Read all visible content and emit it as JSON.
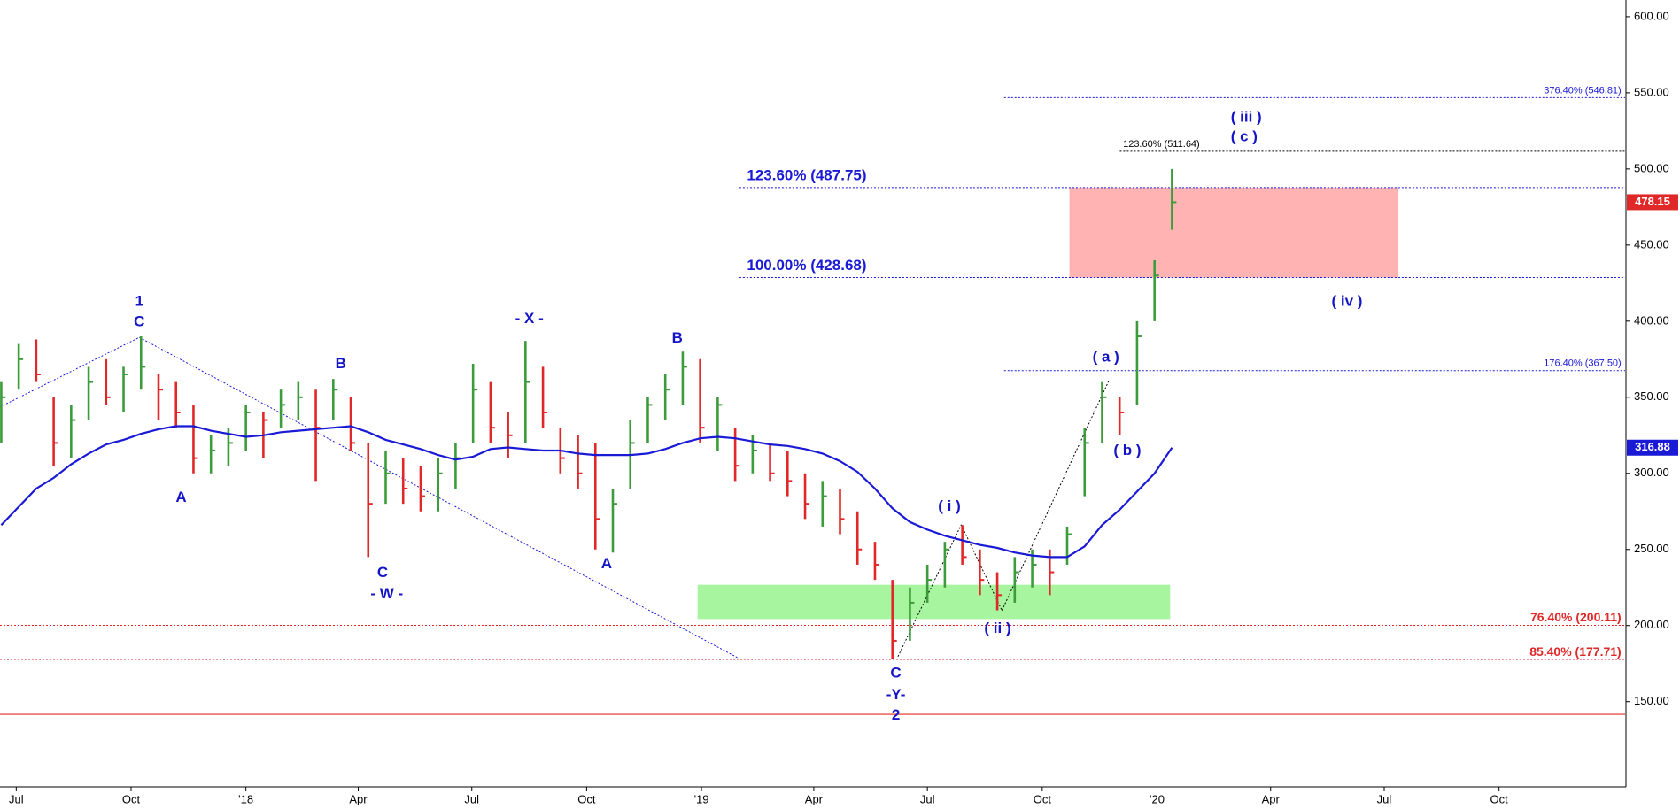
{
  "chart_data": {
    "type": "ohlc",
    "x": [
      "2017-06-19",
      "2017-07-03",
      "2017-07-17",
      "2017-07-31",
      "2017-08-14",
      "2017-08-28",
      "2017-09-11",
      "2017-09-25",
      "2017-10-09",
      "2017-10-23",
      "2017-11-06",
      "2017-11-20",
      "2017-12-04",
      "2017-12-18",
      "2018-01-01",
      "2018-01-15",
      "2018-01-29",
      "2018-02-12",
      "2018-02-26",
      "2018-03-12",
      "2018-03-26",
      "2018-04-09",
      "2018-04-23",
      "2018-05-07",
      "2018-05-21",
      "2018-06-04",
      "2018-06-18",
      "2018-07-02",
      "2018-07-16",
      "2018-07-30",
      "2018-08-13",
      "2018-08-27",
      "2018-09-10",
      "2018-09-24",
      "2018-10-08",
      "2018-10-22",
      "2018-11-05",
      "2018-11-19",
      "2018-12-03",
      "2018-12-17",
      "2018-12-31",
      "2019-01-14",
      "2019-01-28",
      "2019-02-11",
      "2019-02-25",
      "2019-03-11",
      "2019-03-25",
      "2019-04-08",
      "2019-04-22",
      "2019-05-06",
      "2019-05-20",
      "2019-06-03",
      "2019-06-17",
      "2019-07-01",
      "2019-07-15",
      "2019-07-29",
      "2019-08-12",
      "2019-08-26",
      "2019-09-09",
      "2019-09-23",
      "2019-10-07",
      "2019-10-21",
      "2019-11-04",
      "2019-11-18",
      "2019-12-02",
      "2019-12-16",
      "2019-12-30",
      "2020-01-13"
    ],
    "high": [
      360,
      385,
      388,
      350,
      345,
      370,
      375,
      370,
      390,
      365,
      360,
      345,
      325,
      330,
      345,
      340,
      355,
      360,
      355,
      362,
      350,
      320,
      315,
      310,
      305,
      310,
      320,
      372,
      360,
      340,
      387,
      370,
      330,
      325,
      320,
      290,
      335,
      350,
      365,
      380,
      375,
      350,
      330,
      325,
      320,
      315,
      300,
      295,
      290,
      275,
      255,
      230,
      225,
      240,
      255,
      266,
      250,
      235,
      245,
      250,
      250,
      265,
      330,
      360,
      350,
      400,
      440,
      500
    ],
    "low": [
      320,
      355,
      360,
      305,
      310,
      335,
      345,
      340,
      355,
      335,
      330,
      300,
      300,
      305,
      315,
      310,
      330,
      335,
      295,
      335,
      315,
      245,
      280,
      280,
      275,
      275,
      290,
      320,
      320,
      310,
      320,
      330,
      300,
      290,
      250,
      248,
      290,
      320,
      335,
      345,
      320,
      315,
      295,
      300,
      295,
      285,
      270,
      265,
      260,
      240,
      230,
      178,
      190,
      215,
      225,
      240,
      220,
      210,
      215,
      225,
      220,
      240,
      285,
      320,
      325,
      345,
      400,
      460
    ],
    "close": [
      350,
      375,
      365,
      320,
      335,
      360,
      350,
      365,
      370,
      355,
      340,
      310,
      315,
      320,
      340,
      335,
      345,
      350,
      330,
      355,
      320,
      280,
      300,
      290,
      285,
      300,
      310,
      355,
      330,
      325,
      360,
      340,
      310,
      300,
      270,
      280,
      320,
      345,
      355,
      370,
      330,
      345,
      305,
      315,
      300,
      295,
      280,
      285,
      270,
      250,
      240,
      190,
      215,
      230,
      250,
      245,
      230,
      220,
      235,
      240,
      235,
      260,
      320,
      350,
      340,
      390,
      430,
      478.15
    ],
    "up_color": "#3c9c3c",
    "down_color": "#e02828",
    "ma": {
      "color": "#1a1ad6",
      "values": [
        266,
        278,
        290,
        297,
        306,
        313,
        319,
        322,
        326,
        329,
        331,
        331,
        328,
        326,
        324,
        325,
        327,
        328,
        329,
        330,
        331,
        327,
        322,
        319,
        316,
        312,
        309,
        311,
        316,
        317,
        316,
        315,
        315,
        313,
        312,
        312,
        312,
        313,
        316,
        320,
        323,
        324,
        323,
        321,
        319,
        318,
        316,
        313,
        308,
        301,
        290,
        277,
        268,
        263,
        259,
        256,
        253,
        251,
        248,
        246,
        245,
        245,
        252,
        266,
        276,
        288,
        300,
        316.88
      ]
    },
    "xlim": [
      "2017-06-18",
      "2021-01-10"
    ],
    "xticks": [
      {
        "value": "2017-07-01",
        "label": "Jul"
      },
      {
        "value": "2017-10-01",
        "label": "Oct"
      },
      {
        "value": "2018-01-01",
        "label": "'18"
      },
      {
        "value": "2018-04-01",
        "label": "Apr"
      },
      {
        "value": "2018-07-01",
        "label": "Jul"
      },
      {
        "value": "2018-10-01",
        "label": "Oct"
      },
      {
        "value": "2019-01-01",
        "label": "'19"
      },
      {
        "value": "2019-04-01",
        "label": "Apr"
      },
      {
        "value": "2019-07-01",
        "label": "Jul"
      },
      {
        "value": "2019-10-01",
        "label": "Oct"
      },
      {
        "value": "2020-01-01",
        "label": "'20"
      },
      {
        "value": "2020-04-01",
        "label": "Apr"
      },
      {
        "value": "2020-07-01",
        "label": "Jul"
      },
      {
        "value": "2020-10-01",
        "label": "Oct"
      }
    ],
    "ylim": [
      94,
      611
    ],
    "yticks": [
      {
        "value": 150,
        "label": "150.00"
      },
      {
        "value": 200,
        "label": "200.00"
      },
      {
        "value": 250,
        "label": "250.00"
      },
      {
        "value": 300,
        "label": "300.00"
      },
      {
        "value": 350,
        "label": "350.00"
      },
      {
        "value": 400,
        "label": "400.00"
      },
      {
        "value": 450,
        "label": "450.00"
      },
      {
        "value": 500,
        "label": "500.00"
      },
      {
        "value": 550,
        "label": "550.00"
      },
      {
        "value": 600,
        "label": "600.00"
      }
    ],
    "levels": [
      {
        "label": "376.40% (546.81)",
        "value": 546.81,
        "color": "#1a1ad6"
      },
      {
        "label": "123.60% (511.64)",
        "value": 511.64,
        "color": "#000000"
      },
      {
        "label": "123.60% (487.75)",
        "value": 487.75,
        "color": "#1a1ad6"
      },
      {
        "label": "100.00% (428.68)",
        "value": 428.68,
        "color": "#1a1ad6"
      },
      {
        "label": "176.40% (367.50)",
        "value": 367.5,
        "color": "#1a1ad6"
      },
      {
        "label": "76.40% (200.11)",
        "value": 200.11,
        "color": "#e02828"
      },
      {
        "label": "85.40% (177.71)",
        "value": 177.71,
        "color": "#e02828"
      }
    ],
    "annotations": [
      "1",
      "C",
      "A",
      "B",
      "C",
      "- W -",
      "- X -",
      "A",
      "B",
      "C",
      "-Y-",
      "2",
      "( i )",
      "( ii )",
      "( a )",
      "( b )",
      "( iii )",
      "( c )",
      "( iv )"
    ]
  }
}
